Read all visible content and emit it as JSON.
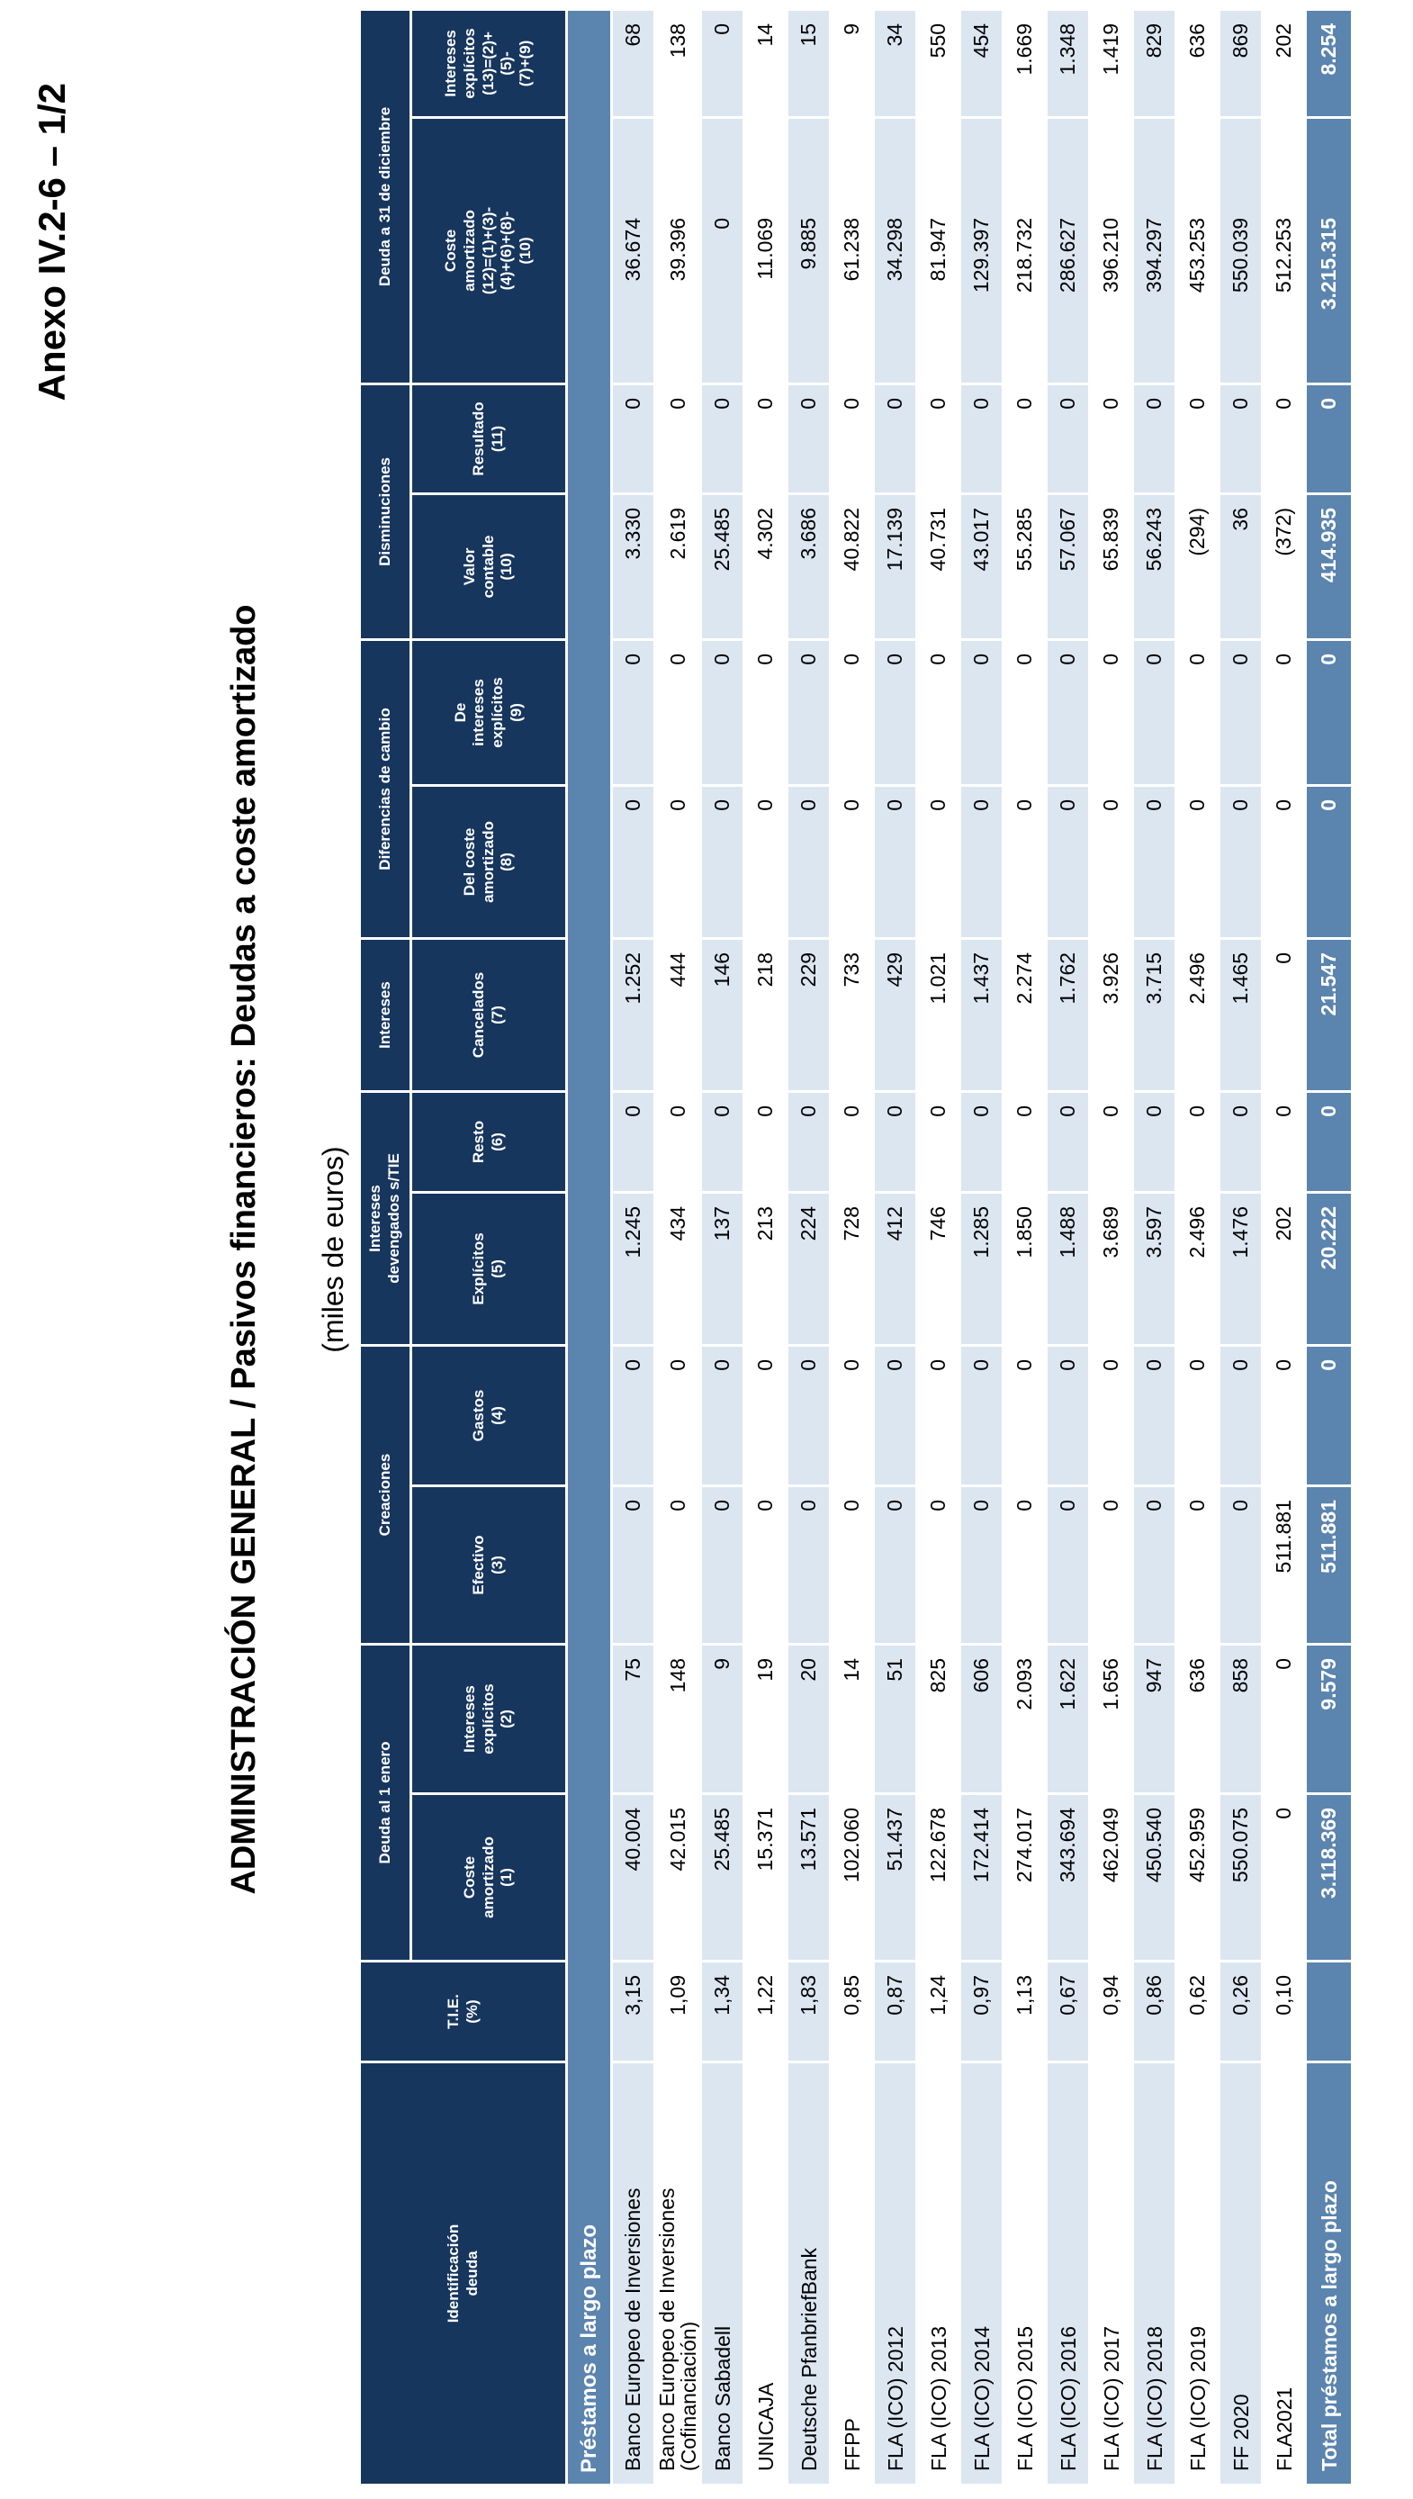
{
  "page": {
    "anexo_label": "Anexo IV.2-6 – 1/2",
    "title": "ADMINISTRACIÓN GENERAL  /  Pasivos financieros: Deudas a coste amortizado",
    "units_label": "(miles de euros)"
  },
  "colors": {
    "header_navy": "#17365D",
    "section_total_blue": "#5B84AE",
    "stripe_light_blue": "#DCE6F1",
    "stripe_white": "#FFFFFF",
    "text_black": "#000000",
    "text_white": "#FFFFFF"
  },
  "table": {
    "col1_header": "Identificación\ndeuda",
    "col2_header": "T.I.E.\n(%)",
    "groups": [
      {
        "label": "Deuda al 1 enero",
        "span": 2
      },
      {
        "label": "Creaciones",
        "span": 2
      },
      {
        "label": "Intereses\ndevengados s/TIE",
        "span": 2
      },
      {
        "label": "Intereses",
        "span": 1
      },
      {
        "label": "Diferencias de cambio",
        "span": 2
      },
      {
        "label": "Disminuciones",
        "span": 2
      },
      {
        "label": "Deuda a 31 de diciembre",
        "span": 2
      }
    ],
    "subheaders": [
      "Coste\namortizado\n(1)",
      "Intereses\nexplícitos\n(2)",
      "Efectivo\n(3)",
      "Gastos\n(4)",
      "Explícitos\n(5)",
      "Resto\n(6)",
      "Cancelados\n(7)",
      "Del coste\namortizado\n(8)",
      "De\nintereses\nexplícitos\n(9)",
      "Valor\ncontable\n(10)",
      "Resultado\n(11)",
      "Coste\namortizado\n(12)=(1)+(3)-\n(4)+(6)+(8)-\n(10)",
      "Intereses\nexplícitos\n(13)=(2)+(5)-\n(7)+(9)"
    ],
    "section_label": "Préstamos a largo plazo",
    "rows": [
      {
        "name": "Banco Europeo de Inversiones",
        "tie": "3,15",
        "values": [
          "40.004",
          "75",
          "0",
          "0",
          "1.245",
          "0",
          "1.252",
          "0",
          "0",
          "3.330",
          "0",
          "36.674",
          "68"
        ]
      },
      {
        "name": "Banco Europeo de Inversiones (Cofinanciación)",
        "tie": "1,09",
        "values": [
          "42.015",
          "148",
          "0",
          "0",
          "434",
          "0",
          "444",
          "0",
          "0",
          "2.619",
          "0",
          "39.396",
          "138"
        ]
      },
      {
        "name": "Banco Sabadell",
        "tie": "1,34",
        "values": [
          "25.485",
          "9",
          "0",
          "0",
          "137",
          "0",
          "146",
          "0",
          "0",
          "25.485",
          "0",
          "0",
          "0"
        ]
      },
      {
        "name": "UNICAJA",
        "tie": "1,22",
        "values": [
          "15.371",
          "19",
          "0",
          "0",
          "213",
          "0",
          "218",
          "0",
          "0",
          "4.302",
          "0",
          "11.069",
          "14"
        ]
      },
      {
        "name": "Deutsche PfanbriefBank",
        "tie": "1,83",
        "values": [
          "13.571",
          "20",
          "0",
          "0",
          "224",
          "0",
          "229",
          "0",
          "0",
          "3.686",
          "0",
          "9.885",
          "15"
        ]
      },
      {
        "name": "FFPP",
        "tie": "0,85",
        "values": [
          "102.060",
          "14",
          "0",
          "0",
          "728",
          "0",
          "733",
          "0",
          "0",
          "40.822",
          "0",
          "61.238",
          "9"
        ]
      },
      {
        "name": "FLA (ICO) 2012",
        "tie": "0,87",
        "values": [
          "51.437",
          "51",
          "0",
          "0",
          "412",
          "0",
          "429",
          "0",
          "0",
          "17.139",
          "0",
          "34.298",
          "34"
        ]
      },
      {
        "name": "FLA (ICO) 2013",
        "tie": "1,24",
        "values": [
          "122.678",
          "825",
          "0",
          "0",
          "746",
          "0",
          "1.021",
          "0",
          "0",
          "40.731",
          "0",
          "81.947",
          "550"
        ]
      },
      {
        "name": "FLA (ICO) 2014",
        "tie": "0,97",
        "values": [
          "172.414",
          "606",
          "0",
          "0",
          "1.285",
          "0",
          "1.437",
          "0",
          "0",
          "43.017",
          "0",
          "129.397",
          "454"
        ]
      },
      {
        "name": "FLA (ICO) 2015",
        "tie": "1,13",
        "values": [
          "274.017",
          "2.093",
          "0",
          "0",
          "1.850",
          "0",
          "2.274",
          "0",
          "0",
          "55.285",
          "0",
          "218.732",
          "1.669"
        ]
      },
      {
        "name": "FLA (ICO) 2016",
        "tie": "0,67",
        "values": [
          "343.694",
          "1.622",
          "0",
          "0",
          "1.488",
          "0",
          "1.762",
          "0",
          "0",
          "57.067",
          "0",
          "286.627",
          "1.348"
        ]
      },
      {
        "name": "FLA (ICO) 2017",
        "tie": "0,94",
        "values": [
          "462.049",
          "1.656",
          "0",
          "0",
          "3.689",
          "0",
          "3.926",
          "0",
          "0",
          "65.839",
          "0",
          "396.210",
          "1.419"
        ]
      },
      {
        "name": "FLA (ICO) 2018",
        "tie": "0,86",
        "values": [
          "450.540",
          "947",
          "0",
          "0",
          "3.597",
          "0",
          "3.715",
          "0",
          "0",
          "56.243",
          "0",
          "394.297",
          "829"
        ]
      },
      {
        "name": "FLA (ICO) 2019",
        "tie": "0,62",
        "values": [
          "452.959",
          "636",
          "0",
          "0",
          "2.496",
          "0",
          "2.496",
          "0",
          "0",
          "(294)",
          "0",
          "453.253",
          "636"
        ]
      },
      {
        "name": "FF 2020",
        "tie": "0,26",
        "values": [
          "550.075",
          "858",
          "0",
          "0",
          "1.476",
          "0",
          "1.465",
          "0",
          "0",
          "36",
          "0",
          "550.039",
          "869"
        ]
      },
      {
        "name": "FLA2021",
        "tie": "0,10",
        "values": [
          "0",
          "0",
          "511.881",
          "0",
          "202",
          "0",
          "0",
          "0",
          "0",
          "(372)",
          "0",
          "512.253",
          "202"
        ]
      }
    ],
    "total": {
      "name": "Total préstamos a largo plazo",
      "tie": "",
      "values": [
        "3.118.369",
        "9.579",
        "511.881",
        "0",
        "20.222",
        "0",
        "21.547",
        "0",
        "0",
        "414.935",
        "0",
        "3.215.315",
        "8.254"
      ]
    }
  }
}
